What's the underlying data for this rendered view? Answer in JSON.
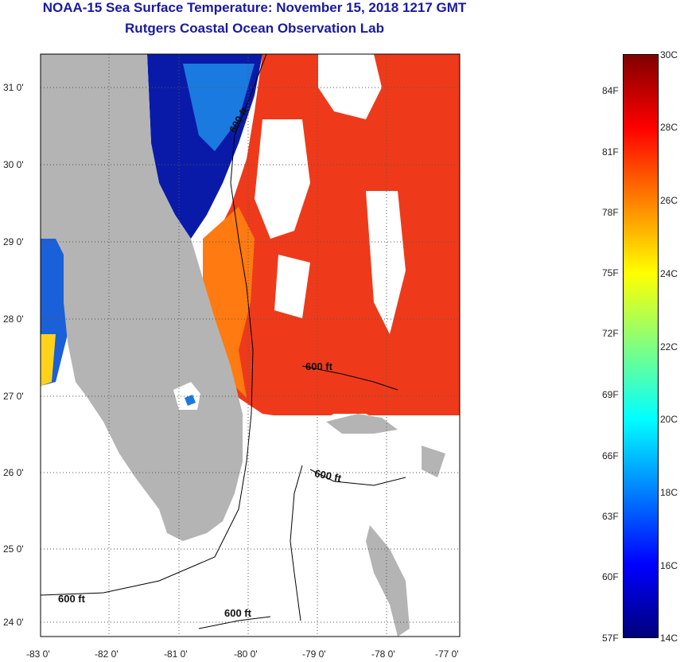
{
  "header": {
    "title": "NOAA-15 Sea Surface Temperature:  November 15, 2018 1217 GMT",
    "subtitle": "Rutgers Coastal Ocean Observation Lab"
  },
  "map": {
    "lon_ticks": [
      "-83 0'",
      "-82 0'",
      "-81 0'",
      "-80 0'",
      "-79 0'",
      "-78 0'",
      "-77 0'"
    ],
    "lat_ticks": [
      "31 0'",
      "30 0'",
      "29 0'",
      "28 0'",
      "27 0'",
      "26 0'",
      "25 0'",
      "24 0'"
    ],
    "contour_labels": [
      "600 ft",
      "600 ft",
      "600 ft",
      "600 ft",
      "600 ft"
    ],
    "colors": {
      "land": "#b4b4b4",
      "cloud": "#ffffff",
      "grid": "#555555"
    }
  },
  "colorbar": {
    "celsius": [
      "30C",
      "28C",
      "26C",
      "24C",
      "22C",
      "20C",
      "18C",
      "16C",
      "14C"
    ],
    "fahrenheit": [
      "84F",
      "81F",
      "78F",
      "75F",
      "72F",
      "69F",
      "66F",
      "63F",
      "60F",
      "57F"
    ],
    "colors": [
      "#00007a",
      "#0000ff",
      "#0080ff",
      "#00ffff",
      "#80ff80",
      "#ffff00",
      "#ff8000",
      "#ff0000",
      "#800000"
    ]
  }
}
